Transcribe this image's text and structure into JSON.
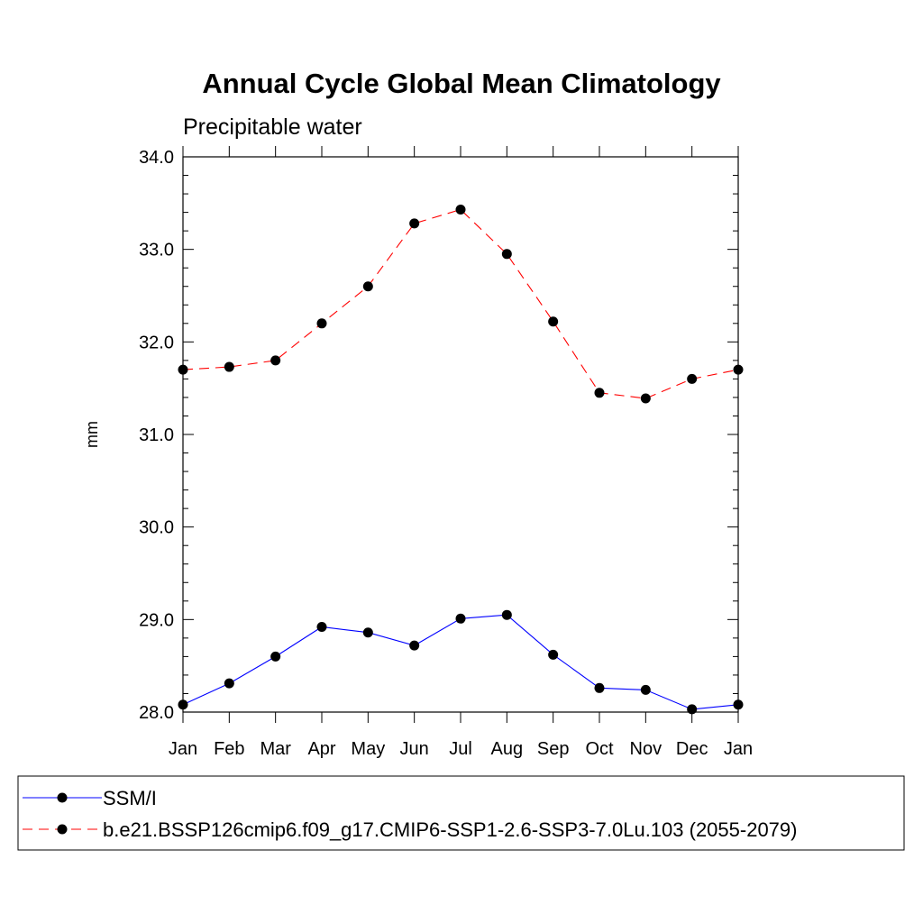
{
  "chart_data": {
    "type": "line",
    "title": "Annual Cycle Global Mean Climatology",
    "subtitle": "Precipitable water",
    "xlabel": "",
    "ylabel": "mm",
    "ylim": [
      28.0,
      34.0
    ],
    "yticks": [
      "28.0",
      "29.0",
      "30.0",
      "31.0",
      "32.0",
      "33.0",
      "34.0"
    ],
    "categories": [
      "Jan",
      "Feb",
      "Mar",
      "Apr",
      "May",
      "Jun",
      "Jul",
      "Aug",
      "Sep",
      "Oct",
      "Nov",
      "Dec",
      "Jan"
    ],
    "grid": false,
    "legend_position": "bottom",
    "series": [
      {
        "name": "SSM/I",
        "color": "#0000ff",
        "line_style": "solid",
        "marker": "filled-circle",
        "values": [
          28.08,
          28.31,
          28.6,
          28.92,
          28.86,
          28.72,
          29.01,
          29.05,
          28.62,
          28.26,
          28.24,
          28.03,
          28.08
        ]
      },
      {
        "name": "b.e21.BSSP126cmip6.f09_g17.CMIP6-SSP1-2.6-SSP3-7.0Lu.103 (2055-2079)",
        "color": "#ff0000",
        "line_style": "dashed",
        "marker": "filled-circle",
        "values": [
          31.7,
          31.73,
          31.8,
          32.2,
          32.6,
          33.28,
          33.43,
          32.95,
          32.22,
          31.45,
          31.39,
          31.6,
          31.7
        ]
      }
    ]
  }
}
